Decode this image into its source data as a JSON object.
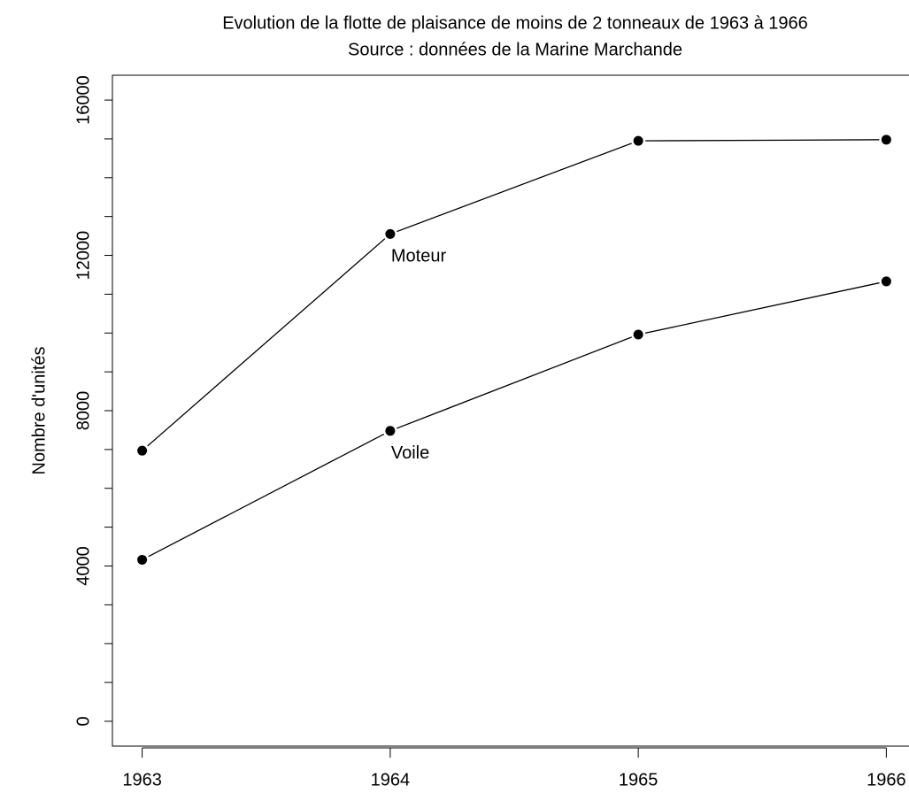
{
  "chart_data": {
    "type": "line",
    "title": "Evolution de la flotte de plaisance de moins de 2 tonneaux de 1963 à 1966",
    "subtitle": "Source : données de la Marine Marchande",
    "y_label": "Nombre d'unités",
    "x": [
      1963,
      1964,
      1965,
      1966
    ],
    "series": [
      {
        "name": "Moteur",
        "color": "#000000",
        "values": [
          6970,
          12550,
          14950,
          14980
        ]
      },
      {
        "name": "Voile",
        "color": "#000000",
        "values": [
          4160,
          7480,
          9960,
          11330
        ]
      }
    ],
    "xlim": [
      1962.88,
      1966.12
    ],
    "xticks": [
      1963,
      1964,
      1965,
      1966
    ],
    "ylim": [
      -640,
      16640
    ],
    "yticks": [
      0,
      4000,
      8000,
      12000,
      16000
    ],
    "yticks_minor": [
      1000,
      2000,
      3000,
      5000,
      6000,
      7000,
      9000,
      10000,
      11000,
      13000,
      14000,
      15000
    ],
    "grid": false
  }
}
